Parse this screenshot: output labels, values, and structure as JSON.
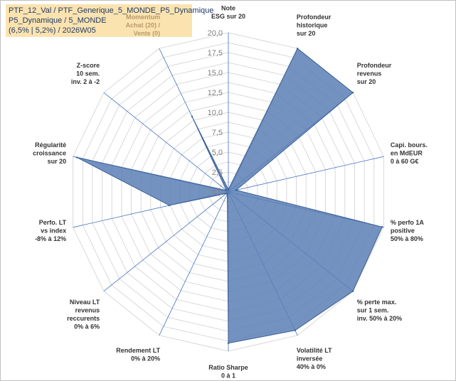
{
  "title": {
    "line1": "PTF_12_Val / PTF_Generique_5_MONDE_P5_Dynamique",
    "line2": "P5_Dynamique / 5_MONDE",
    "line3": "(6,5% | 5,2%) / 2026W05"
  },
  "colors": {
    "fill": "#5b7fb5",
    "grid": "#d9d9d9",
    "spoke": "#4472c4",
    "title_bg": "#fbe3b0",
    "title_text": "#1f3a66",
    "muted_label": "#b89a6a"
  },
  "chart_data": {
    "type": "radar",
    "title": "",
    "rmin": 0,
    "rmax": 20,
    "tick_labels": [
      "0,0",
      "2,5",
      "5,0",
      "7,5",
      "10,0",
      "12,5",
      "15,0",
      "17,5",
      "20,0"
    ],
    "grid": true,
    "categories": [
      {
        "lines": [
          "Note",
          "ESG sur 20"
        ],
        "value": 0.3,
        "muted": false
      },
      {
        "lines": [
          "Profondeur",
          "historique",
          "sur 20"
        ],
        "value": 20,
        "muted": false
      },
      {
        "lines": [
          "Profondeur",
          "revenus",
          "sur 20"
        ],
        "value": 20,
        "muted": false
      },
      {
        "lines": [
          "Capi. bours.",
          "en MdEUR",
          "0 à 60 G€"
        ],
        "value": 1,
        "muted": false
      },
      {
        "lines": [
          "% perfo 1A",
          "positive",
          "50% à 80%"
        ],
        "value": 19.8,
        "muted": false
      },
      {
        "lines": [
          "% perte max.",
          "sur 1 sem.",
          "inv. 50% à 20%"
        ],
        "value": 20,
        "muted": false
      },
      {
        "lines": [
          "Volatilité LT",
          "inversée",
          "40% à 0%"
        ],
        "value": 19.3,
        "muted": false
      },
      {
        "lines": [
          "Ratio Sharpe",
          "0 à 1"
        ],
        "value": 19,
        "muted": false
      },
      {
        "lines": [
          "Rendement LT",
          "0% à 20%"
        ],
        "value": 0.3,
        "muted": false
      },
      {
        "lines": [
          "Niveau LT",
          "revenus",
          "reccurents",
          "0% à 6%"
        ],
        "value": 0.3,
        "muted": false
      },
      {
        "lines": [
          "Perfo. LT",
          "vs index",
          "-8% à 12%"
        ],
        "value": 7.6,
        "muted": false
      },
      {
        "lines": [
          "Régularité",
          "croissance",
          "sur 20"
        ],
        "value": 19.5,
        "muted": false
      },
      {
        "lines": [
          "Z-score",
          "10 sem.",
          "inv. 2 à -2"
        ],
        "value": 0.3,
        "muted": false
      },
      {
        "lines": [
          "Momentum",
          "Achat (20) /",
          "Vente (0)"
        ],
        "value": 10.5,
        "muted": true
      }
    ]
  }
}
